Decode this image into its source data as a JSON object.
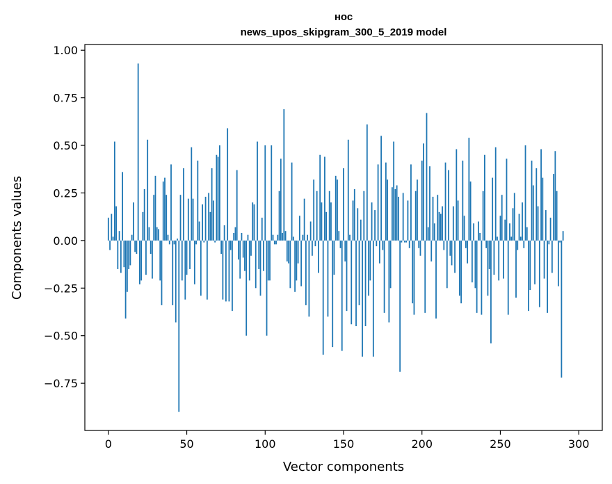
{
  "chart_data": {
    "type": "bar",
    "title": "нос",
    "subtitle": "news_upos_skipgram_300_5_2019 model",
    "xlabel": "Vector components",
    "ylabel": "Components values",
    "xlim": [
      -15,
      315
    ],
    "ylim": [
      -0.998,
      1.03
    ],
    "xticks": [
      0,
      50,
      100,
      150,
      200,
      250,
      300
    ],
    "yticks": [
      -0.75,
      -0.5,
      -0.25,
      0.0,
      0.25,
      0.5,
      0.75,
      1.0
    ],
    "ytick_labels": [
      "−0.75",
      "−0.50",
      "−0.25",
      "0.00",
      "0.25",
      "0.50",
      "0.75",
      "1.00"
    ],
    "bar_color": "#1f77b4",
    "grid": false,
    "legend": "none",
    "values": [
      0.12,
      -0.05,
      0.14,
      0.02,
      0.52,
      0.18,
      -0.15,
      0.05,
      -0.17,
      0.36,
      -0.14,
      -0.41,
      -0.27,
      -0.15,
      -0.13,
      0.03,
      0.2,
      -0.06,
      -0.07,
      0.93,
      -0.23,
      -0.21,
      0.15,
      0.27,
      -0.18,
      0.53,
      0.07,
      -0.07,
      -0.2,
      0.24,
      0.34,
      0.07,
      0.06,
      -0.21,
      -0.34,
      0.31,
      0.33,
      0.24,
      0.03,
      -0.02,
      0.4,
      -0.34,
      -0.02,
      -0.43,
      0.01,
      -0.9,
      0.24,
      -0.21,
      0.38,
      -0.31,
      -0.18,
      0.22,
      -0.15,
      0.49,
      0.22,
      -0.23,
      -0.02,
      0.42,
      0.1,
      -0.29,
      0.19,
      -0.01,
      0.23,
      -0.31,
      0.25,
      0.15,
      0.38,
      0.21,
      -0.01,
      0.45,
      0.44,
      0.5,
      -0.07,
      -0.31,
      0.08,
      -0.32,
      0.59,
      -0.32,
      -0.05,
      -0.37,
      0.04,
      0.07,
      0.37,
      -0.1,
      -0.2,
      0.04,
      -0.09,
      -0.16,
      -0.5,
      0.03,
      -0.21,
      -0.08,
      0.2,
      0.19,
      -0.25,
      0.52,
      -0.15,
      -0.29,
      0.12,
      -0.16,
      0.5,
      -0.5,
      -0.21,
      -0.21,
      0.5,
      0.03,
      -0.02,
      -0.02,
      0.03,
      0.26,
      0.43,
      0.04,
      0.69,
      0.05,
      -0.11,
      -0.12,
      -0.25,
      0.41,
      0.02,
      -0.27,
      -0.21,
      -0.12,
      0.13,
      -0.24,
      0.03,
      0.22,
      -0.34,
      0.03,
      -0.4,
      0.1,
      -0.08,
      0.32,
      -0.03,
      0.26,
      -0.17,
      0.45,
      0.2,
      -0.6,
      0.44,
      0.15,
      -0.4,
      0.26,
      0.2,
      -0.56,
      -0.18,
      0.34,
      0.32,
      0.05,
      -0.04,
      -0.58,
      0.38,
      -0.11,
      -0.37,
      0.53,
      0.03,
      -0.44,
      0.21,
      0.27,
      -0.45,
      0.17,
      -0.34,
      0.11,
      -0.61,
      0.26,
      -0.45,
      0.61,
      -0.29,
      -0.21,
      0.2,
      -0.61,
      0.16,
      -0.03,
      0.4,
      -0.12,
      0.55,
      -0.05,
      -0.38,
      0.41,
      0.32,
      -0.43,
      -0.25,
      0.28,
      0.52,
      0.27,
      0.29,
      0.23,
      -0.69,
      -0.01,
      0.25,
      -0.01,
      -0.01,
      0.21,
      -0.04,
      0.4,
      -0.33,
      -0.39,
      0.26,
      0.32,
      -0.04,
      -0.08,
      0.42,
      0.51,
      -0.38,
      0.67,
      0.07,
      0.39,
      -0.11,
      0.23,
      0.09,
      -0.41,
      0.24,
      0.15,
      0.14,
      0.18,
      -0.05,
      0.41,
      -0.25,
      0.37,
      -0.08,
      -0.13,
      0.18,
      -0.17,
      0.48,
      0.21,
      -0.29,
      -0.33,
      0.42,
      0.13,
      -0.04,
      -0.12,
      0.54,
      0.31,
      -0.22,
      0.09,
      -0.25,
      -0.38,
      0.1,
      0.04,
      -0.39,
      0.26,
      0.45,
      -0.04,
      -0.29,
      -0.15,
      -0.54,
      0.33,
      -0.18,
      0.49,
      0.02,
      -0.21,
      0.13,
      0.24,
      -0.2,
      0.11,
      0.43,
      -0.39,
      0.09,
      0.02,
      0.17,
      0.25,
      -0.3,
      -0.05,
      0.14,
      0.02,
      0.2,
      -0.04,
      0.5,
      0.07,
      -0.37,
      -0.26,
      0.42,
      0.29,
      -0.23,
      0.38,
      0.18,
      -0.35,
      0.48,
      0.33,
      -0.2,
      0.16,
      -0.38,
      -0.02,
      0.12,
      -0.17,
      0.35,
      0.47,
      0.26,
      -0.24,
      -0.01,
      -0.72,
      0.05
    ]
  }
}
